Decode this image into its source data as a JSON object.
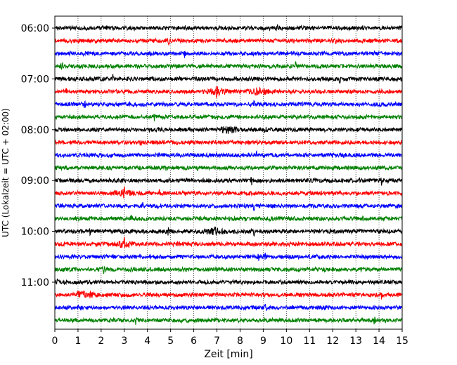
{
  "chart_data": {
    "type": "line",
    "chart_kind": "helicorder",
    "xlabel": "Zeit  [min]",
    "ylabel": "UTC (Lokalzeit = UTC + 02:00)",
    "xlim": [
      0,
      15
    ],
    "x_ticks": [
      "0",
      "1",
      "2",
      "3",
      "4",
      "5",
      "6",
      "7",
      "8",
      "9",
      "10",
      "11",
      "12",
      "13",
      "14",
      "15"
    ],
    "y_ticks": [
      "06:00",
      "07:00",
      "08:00",
      "09:00",
      "10:00",
      "11:00"
    ],
    "trace_row_count": 24,
    "row_minutes": 15,
    "vertical_grid": "dotted",
    "color_cycle": [
      "#000000",
      "#ff0000",
      "#0000ff",
      "#008000"
    ]
  }
}
